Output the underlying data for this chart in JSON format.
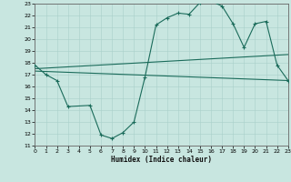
{
  "background_color": "#c8e6e0",
  "line_color": "#1a6b5a",
  "grid_color": "#a8cfca",
  "xlabel": "Humidex (Indice chaleur)",
  "xlim": [
    0,
    23
  ],
  "ylim": [
    11,
    23
  ],
  "yticks": [
    11,
    12,
    13,
    14,
    15,
    16,
    17,
    18,
    19,
    20,
    21,
    22,
    23
  ],
  "xticks": [
    0,
    1,
    2,
    3,
    4,
    5,
    6,
    7,
    8,
    9,
    10,
    11,
    12,
    13,
    14,
    15,
    16,
    17,
    18,
    19,
    20,
    21,
    22,
    23
  ],
  "curve_main_x": [
    0,
    1,
    2,
    3,
    5,
    6,
    7,
    8,
    9,
    10,
    11,
    12,
    13,
    14,
    15,
    16,
    17,
    18,
    19,
    20,
    21,
    22,
    23
  ],
  "curve_main_y": [
    17.8,
    17.0,
    16.5,
    14.3,
    14.4,
    11.9,
    11.6,
    12.1,
    13.0,
    16.8,
    21.2,
    21.8,
    22.2,
    22.1,
    23.1,
    23.2,
    22.8,
    21.3,
    19.3,
    21.3,
    21.5,
    17.8,
    16.5
  ],
  "line1_x": [
    0,
    23
  ],
  "line1_y": [
    17.5,
    18.7
  ],
  "line2_x": [
    0,
    23
  ],
  "line2_y": [
    17.3,
    16.5
  ]
}
